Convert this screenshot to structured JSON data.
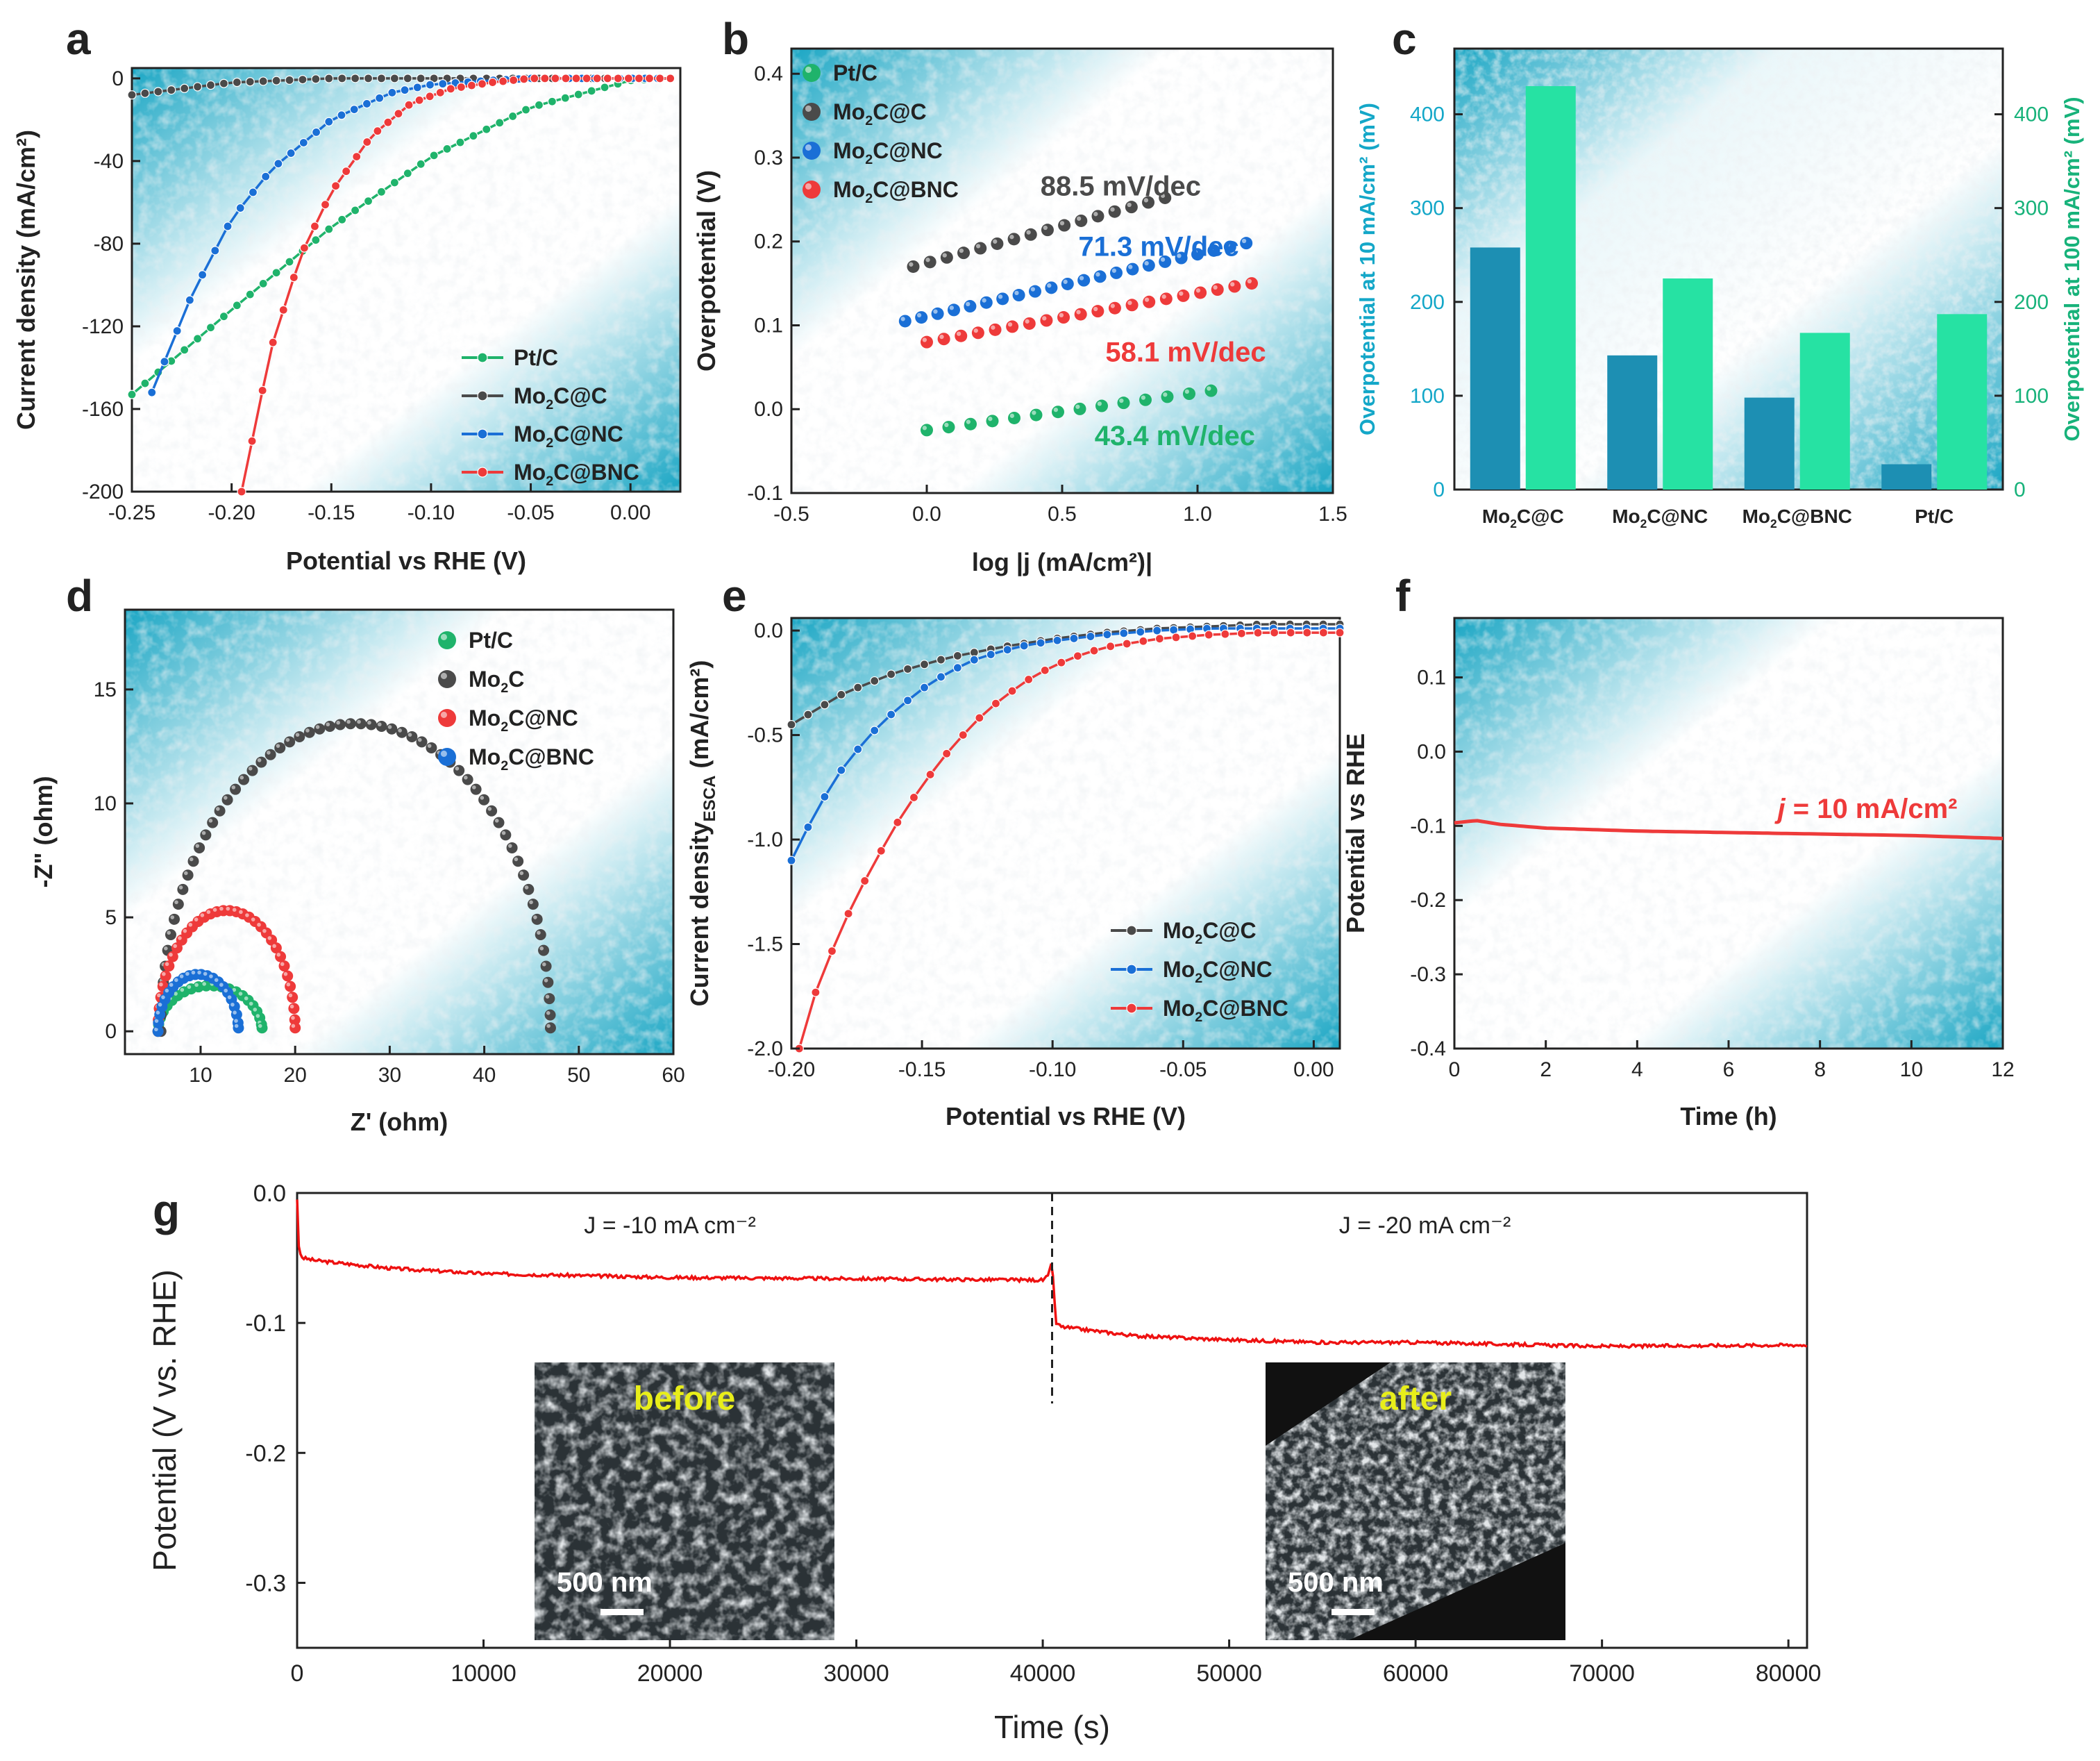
{
  "figure": {
    "colors": {
      "green": "#1fb36b",
      "black": "#4a4a4a",
      "blue": "#1a6fd6",
      "red": "#ee3a3a",
      "teal_axis": "#14a7c8",
      "green_axis": "#17b27a",
      "bar_blue": "#1d8fb3",
      "bar_green": "#26e2a3",
      "g_line": "#ee1111"
    }
  },
  "chart_data": [
    {
      "id": "a",
      "panel_label": "a",
      "type": "line",
      "xlabel": "Potential vs RHE (V)",
      "ylabel": "Current density (mA/cm²)",
      "xlim": [
        -0.25,
        0.025
      ],
      "ylim": [
        -200,
        5
      ],
      "xticks": [
        -0.25,
        -0.2,
        -0.15,
        -0.1,
        -0.05,
        0.0
      ],
      "xtick_labels": [
        "-0.25",
        "-0.20",
        "-0.15",
        "-0.10",
        "-0.05",
        "0.00"
      ],
      "yticks": [
        0,
        -40,
        -80,
        -120,
        -160,
        -200
      ],
      "ytick_labels": [
        "0",
        "-40",
        "-80",
        "-120",
        "-160",
        "-200"
      ],
      "legend": [
        "Pt/C",
        "Mo₂C@C",
        "Mo₂C@NC",
        "Mo₂C@BNC"
      ],
      "legend_position": "bottom-right",
      "series": [
        {
          "name": "Pt/C",
          "color": "green",
          "x": [
            -0.25,
            -0.2,
            -0.15,
            -0.1,
            -0.05,
            0.0,
            0.02
          ],
          "y": [
            -153,
            -112,
            -72,
            -38,
            -14,
            -1,
            0
          ]
        },
        {
          "name": "Mo₂C@C",
          "color": "black",
          "x": [
            -0.25,
            -0.2,
            -0.15,
            -0.1,
            -0.05,
            0.0,
            0.02
          ],
          "y": [
            -8,
            -2,
            0,
            0,
            0,
            0,
            0
          ]
        },
        {
          "name": "Mo₂C@NC",
          "color": "blue",
          "x": [
            -0.24,
            -0.22,
            -0.2,
            -0.18,
            -0.15,
            -0.12,
            -0.1,
            -0.07,
            -0.05,
            0.02
          ],
          "y": [
            -152,
            -105,
            -68,
            -44,
            -20,
            -7,
            -3,
            -1,
            0,
            0
          ]
        },
        {
          "name": "Mo₂C@BNC",
          "color": "red",
          "x": [
            -0.195,
            -0.18,
            -0.165,
            -0.15,
            -0.13,
            -0.11,
            -0.09,
            -0.07,
            -0.05,
            0.02
          ],
          "y": [
            -200,
            -130,
            -85,
            -55,
            -28,
            -12,
            -5,
            -2,
            0,
            0
          ]
        }
      ]
    },
    {
      "id": "b",
      "panel_label": "b",
      "type": "scatter",
      "xlabel": "log |j (mA/cm²)|",
      "ylabel": "Overpotential (V)",
      "xlim": [
        -0.5,
        1.5
      ],
      "ylim": [
        -0.1,
        0.43
      ],
      "xticks": [
        -0.5,
        0.0,
        0.5,
        1.0,
        1.5
      ],
      "xtick_labels": [
        "-0.5",
        "0.0",
        "0.5",
        "1.0",
        "1.5"
      ],
      "yticks": [
        -0.1,
        0.0,
        0.1,
        0.2,
        0.3,
        0.4
      ],
      "ytick_labels": [
        "-0.1",
        "0.0",
        "0.1",
        "0.2",
        "0.3",
        "0.4"
      ],
      "legend": [
        "Pt/C",
        "Mo₂C@C",
        "Mo₂C@NC",
        "Mo₂C@BNC"
      ],
      "legend_position": "top-left",
      "series": [
        {
          "name": "Pt/C",
          "color": "green",
          "x_range": [
            0.0,
            1.05
          ],
          "y_range": [
            -0.025,
            0.022
          ],
          "n": 14
        },
        {
          "name": "Mo₂C@C",
          "color": "black",
          "x_range": [
            -0.05,
            0.88
          ],
          "y_range": [
            0.17,
            0.252
          ],
          "n": 16
        },
        {
          "name": "Mo₂C@NC",
          "color": "blue",
          "x_range": [
            -0.08,
            1.18
          ],
          "y_range": [
            0.105,
            0.198
          ],
          "n": 22
        },
        {
          "name": "Mo₂C@BNC",
          "color": "red",
          "x_range": [
            0.0,
            1.2
          ],
          "y_range": [
            0.08,
            0.15
          ],
          "n": 20
        }
      ],
      "annotations": [
        {
          "text": "88.5 mV/dec",
          "color": "black",
          "x": 0.42,
          "y": 0.255
        },
        {
          "text": "71.3 mV/dec",
          "color": "blue",
          "x": 0.56,
          "y": 0.183
        },
        {
          "text": "58.1 mV/dec",
          "color": "red",
          "x": 0.66,
          "y": 0.057
        },
        {
          "text": "43.4 mV/dec",
          "color": "green",
          "x": 0.62,
          "y": -0.043
        }
      ]
    },
    {
      "id": "c",
      "panel_label": "c",
      "type": "bar",
      "categories": [
        "Mo₂C@C",
        "Mo₂C@NC",
        "Mo₂C@BNC",
        "Pt/C"
      ],
      "series": [
        {
          "name": "Overpotential at 10 mA/cm²",
          "color": "bar_blue",
          "values": [
            258,
            143,
            98,
            27
          ]
        },
        {
          "name": "Overpotential at 100 mA/cm²",
          "color": "bar_green",
          "values": [
            430,
            225,
            167,
            187
          ]
        }
      ],
      "ylabel": "Overpotential at 10 mA/cm² (mV)",
      "ylabel_right": "Overpotential at 100 mA/cm² (mV)",
      "ylim": [
        0,
        470
      ],
      "yticks": [
        0,
        100,
        200,
        300,
        400
      ],
      "ytick_labels": [
        "0",
        "100",
        "200",
        "300",
        "400"
      ]
    },
    {
      "id": "d",
      "panel_label": "d",
      "type": "scatter",
      "xlabel": "Z' (ohm)",
      "ylabel": "-Z\" (ohm)",
      "xlim": [
        2,
        60
      ],
      "ylim": [
        -1,
        18.5
      ],
      "xticks": [
        10,
        20,
        30,
        40,
        50,
        60
      ],
      "xtick_labels": [
        "10",
        "20",
        "30",
        "40",
        "50",
        "60"
      ],
      "yticks": [
        0,
        5,
        10,
        15
      ],
      "ytick_labels": [
        "0",
        "5",
        "10",
        "15"
      ],
      "legend": [
        "Pt/C",
        "Mo₂C",
        "Mo₂C@NC",
        "Mo₂C@BNC"
      ],
      "legend_position": "top-right",
      "series": [
        {
          "name": "Pt/C",
          "color": "green",
          "r0": 5.5,
          "r1": 16.5,
          "h": 2.0,
          "n": 22
        },
        {
          "name": "Mo₂C",
          "color": "black",
          "r0": 5.8,
          "r1": 47.0,
          "h": 13.5,
          "n": 60
        },
        {
          "name": "Mo₂C@NC",
          "color": "red",
          "r0": 5.5,
          "r1": 20.0,
          "h": 5.3,
          "n": 34
        },
        {
          "name": "Mo₂C@BNC",
          "color": "blue",
          "r0": 5.5,
          "r1": 14.0,
          "h": 2.5,
          "n": 22
        }
      ]
    },
    {
      "id": "e",
      "panel_label": "e",
      "type": "line",
      "xlabel": "Potential vs RHE (V)",
      "ylabel": "Current density",
      "ylabel_sub": "ESCA",
      "ylabel_unit": " (mA/cm²)",
      "xlim": [
        -0.2,
        0.01
      ],
      "ylim": [
        -2.0,
        0.06
      ],
      "xticks": [
        -0.2,
        -0.15,
        -0.1,
        -0.05,
        0.0
      ],
      "xtick_labels": [
        "-0.20",
        "-0.15",
        "-0.10",
        "-0.05",
        "0.00"
      ],
      "yticks": [
        0.0,
        -0.5,
        -1.0,
        -1.5,
        -2.0
      ],
      "ytick_labels": [
        "0.0",
        "-0.5",
        "-1.0",
        "-1.5",
        "-2.0"
      ],
      "legend": [
        "Mo₂C@C",
        "Mo₂C@NC",
        "Mo₂C@BNC"
      ],
      "legend_position": "bottom-right",
      "series": [
        {
          "name": "Mo₂C@C",
          "color": "black",
          "x": [
            -0.2,
            -0.18,
            -0.16,
            -0.14,
            -0.12,
            -0.1,
            -0.08,
            -0.06,
            -0.04,
            -0.02,
            0.0,
            0.01
          ],
          "y": [
            -0.45,
            -0.3,
            -0.2,
            -0.13,
            -0.08,
            -0.04,
            -0.01,
            0.01,
            0.02,
            0.03,
            0.03,
            0.03
          ]
        },
        {
          "name": "Mo₂C@NC",
          "color": "blue",
          "x": [
            -0.2,
            -0.19,
            -0.18,
            -0.17,
            -0.16,
            -0.15,
            -0.14,
            -0.13,
            -0.12,
            -0.11,
            -0.1,
            -0.08,
            -0.06,
            -0.04,
            -0.02,
            0.0,
            0.01
          ],
          "y": [
            -1.1,
            -0.85,
            -0.65,
            -0.5,
            -0.38,
            -0.28,
            -0.2,
            -0.14,
            -0.1,
            -0.07,
            -0.05,
            -0.02,
            0.0,
            0.01,
            0.01,
            0.01,
            0.01
          ]
        },
        {
          "name": "Mo₂C@BNC",
          "color": "red",
          "x": [
            -0.197,
            -0.19,
            -0.18,
            -0.17,
            -0.16,
            -0.15,
            -0.14,
            -0.13,
            -0.12,
            -0.11,
            -0.1,
            -0.09,
            -0.08,
            -0.06,
            -0.04,
            -0.02,
            0.0,
            0.01
          ],
          "y": [
            -2.0,
            -1.7,
            -1.4,
            -1.15,
            -0.93,
            -0.74,
            -0.58,
            -0.44,
            -0.33,
            -0.24,
            -0.17,
            -0.12,
            -0.08,
            -0.04,
            -0.02,
            -0.01,
            -0.01,
            -0.01
          ]
        }
      ]
    },
    {
      "id": "f",
      "panel_label": "f",
      "type": "line",
      "xlabel": "Time (h)",
      "ylabel": "Potential vs RHE",
      "xlim": [
        0,
        12
      ],
      "ylim": [
        -0.4,
        0.18
      ],
      "xticks": [
        0,
        2,
        4,
        6,
        8,
        10,
        12
      ],
      "xtick_labels": [
        "0",
        "2",
        "4",
        "6",
        "8",
        "10",
        "12"
      ],
      "yticks": [
        0.1,
        0.0,
        -0.1,
        -0.2,
        -0.3,
        -0.4
      ],
      "ytick_labels": [
        "0.1",
        "0.0",
        "-0.1",
        "-0.2",
        "-0.3",
        "-0.4"
      ],
      "series": [
        {
          "name": "j = 10 mA/cm²",
          "color": "red",
          "x": [
            0,
            0.3,
            0.5,
            1,
            2,
            4,
            6,
            8,
            10,
            12
          ],
          "y": [
            -0.096,
            -0.094,
            -0.093,
            -0.098,
            -0.103,
            -0.107,
            -0.109,
            -0.111,
            -0.113,
            -0.117
          ]
        }
      ],
      "annotation": {
        "text_italic": "j",
        "text": " = 10 mA/cm²",
        "color": "red"
      }
    },
    {
      "id": "g",
      "panel_label": "g",
      "type": "line",
      "xlabel": "Time (s)",
      "ylabel": "Potential (V vs. RHE)",
      "xlim": [
        0,
        81000
      ],
      "ylim": [
        -0.35,
        0.0
      ],
      "xticks": [
        0,
        10000,
        20000,
        30000,
        40000,
        50000,
        60000,
        70000,
        80000
      ],
      "xtick_labels": [
        "0",
        "10000",
        "20000",
        "30000",
        "40000",
        "50000",
        "60000",
        "70000",
        "80000"
      ],
      "yticks": [
        0.0,
        -0.1,
        -0.2,
        -0.3
      ],
      "ytick_labels": [
        "0.0",
        "-0.1",
        "-0.2",
        "-0.3"
      ],
      "series": [
        {
          "name": "Potential",
          "color": "g_line",
          "x": [
            0,
            100,
            300,
            1000,
            5000,
            10000,
            20000,
            30000,
            40000,
            40300,
            40500,
            40700,
            41000,
            45000,
            50000,
            55000,
            60000,
            70000,
            80000,
            81000
          ],
          "y": [
            -0.005,
            -0.045,
            -0.05,
            -0.052,
            -0.058,
            -0.062,
            -0.065,
            -0.066,
            -0.067,
            -0.064,
            -0.052,
            -0.1,
            -0.103,
            -0.11,
            -0.113,
            -0.115,
            -0.115,
            -0.118,
            -0.117,
            -0.117
          ]
        }
      ],
      "switch_time": 40500,
      "annotations": [
        "J = -10 mA cm⁻²",
        "J = -20 mA cm⁻²"
      ],
      "insets": [
        {
          "label": "before",
          "scale_bar": "500 nm"
        },
        {
          "label": "after",
          "scale_bar": "500 nm"
        }
      ]
    }
  ]
}
